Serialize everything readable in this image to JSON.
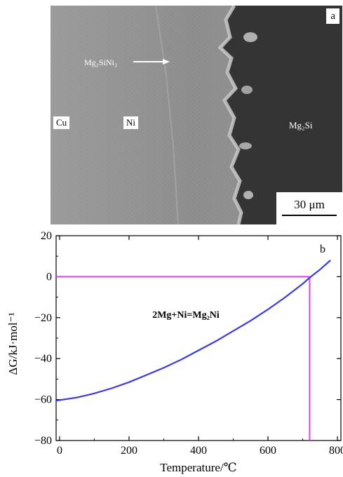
{
  "panel_a": {
    "letter": "a",
    "labels": {
      "cu": "Cu",
      "ni": "Ni",
      "mg2si": "Mg₂Si",
      "mg2sini3": "Mg₂SiNi₃"
    },
    "scale_bar": "30 μm",
    "colors": {
      "ni_region": "#8f8f8f",
      "cu_region": "#959595",
      "mg2si_region": "#353535"
    }
  },
  "chart_data": {
    "type": "line",
    "panel_letter": "b",
    "xlabel": "Temperature/℃",
    "ylabel": "ΔG/kJ·mol⁻¹",
    "xlim": [
      -10,
      810
    ],
    "ylim": [
      -80,
      20
    ],
    "xticks": [
      0,
      200,
      400,
      600,
      800
    ],
    "yticks": [
      20,
      0,
      -20,
      -40,
      -60,
      -80
    ],
    "annotation": "2Mg+Ni=Mg₂Ni",
    "series": [
      {
        "color": "#3a3adf",
        "x": [
          -10,
          50,
          100,
          150,
          200,
          250,
          300,
          350,
          400,
          450,
          500,
          550,
          600,
          650,
          700,
          720,
          750,
          780
        ],
        "y": [
          -60.5,
          -59,
          -57,
          -54.5,
          -51.5,
          -48,
          -44.5,
          -40.5,
          -36,
          -31.5,
          -26.5,
          -21.5,
          -16,
          -10,
          -3.5,
          -0.5,
          3.5,
          8
        ]
      }
    ],
    "reference_lines": {
      "color": "#e040e0",
      "h_y": 0,
      "v_x": 720
    }
  }
}
